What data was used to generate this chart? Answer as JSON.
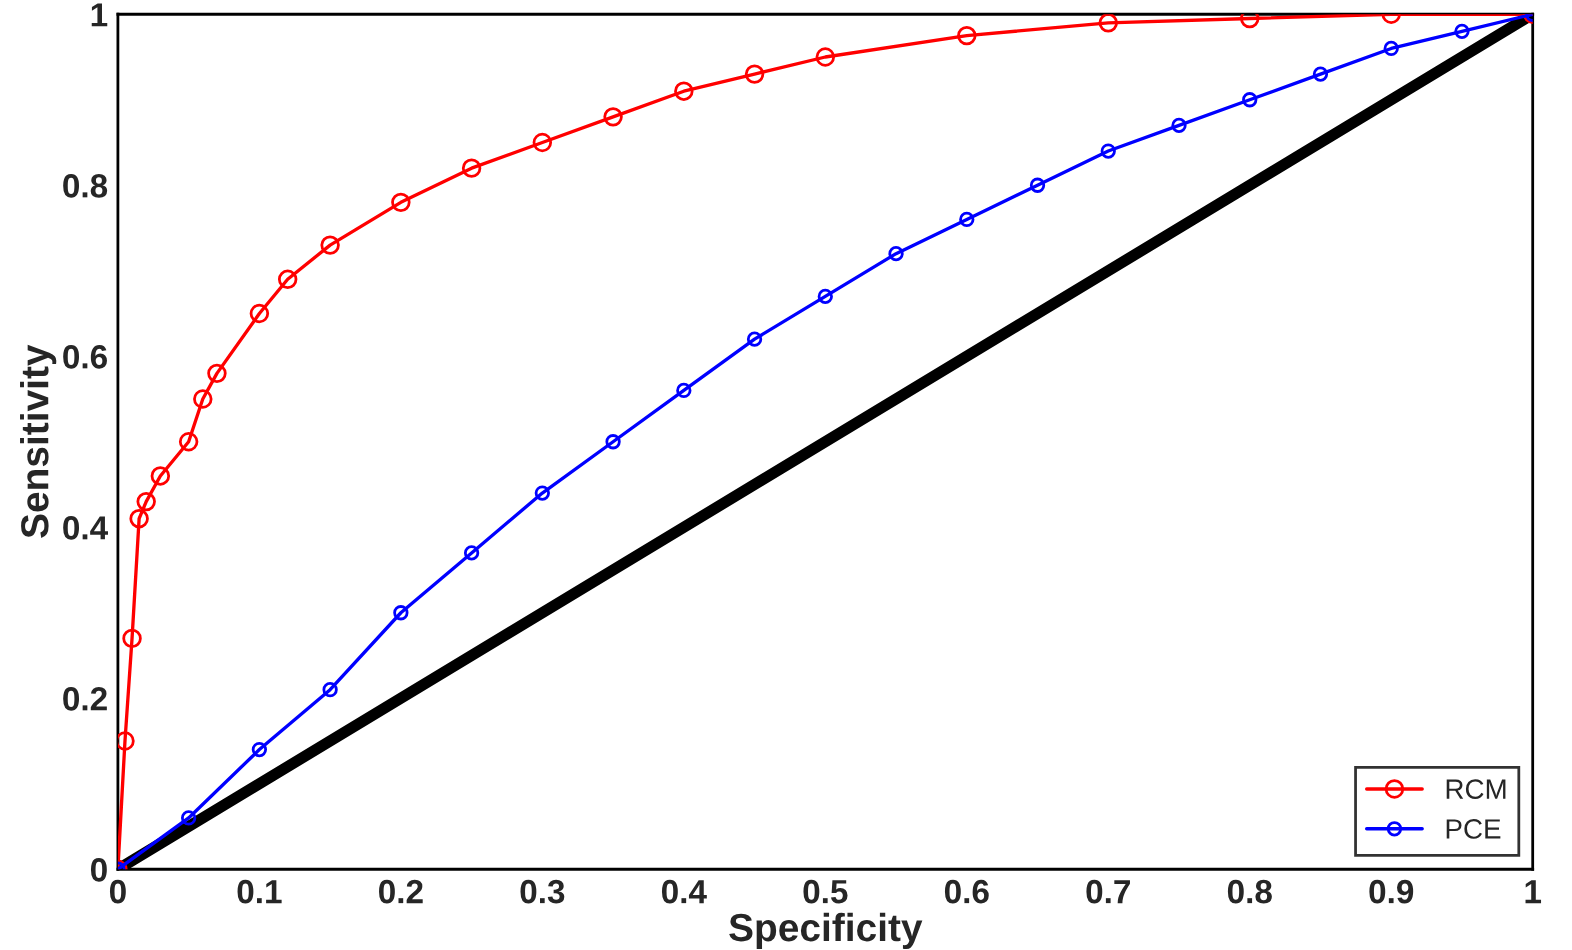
{
  "chart_data": {
    "type": "line",
    "xlabel": "Specificity",
    "ylabel": "Sensitivity",
    "xlim": [
      0,
      1
    ],
    "ylim": [
      0,
      1
    ],
    "xticks": [
      0,
      0.1,
      0.2,
      0.3,
      0.4,
      0.5,
      0.6,
      0.7,
      0.8,
      0.9,
      1
    ],
    "yticks": [
      0,
      0.2,
      0.4,
      0.6,
      0.8,
      1
    ],
    "grid": false,
    "legend": "bottom right",
    "series": [
      {
        "name": "RCM",
        "color": "#ff0000",
        "marker": "circle",
        "x": [
          0,
          0.005,
          0.01,
          0.015,
          0.02,
          0.03,
          0.05,
          0.06,
          0.07,
          0.1,
          0.12,
          0.15,
          0.2,
          0.25,
          0.3,
          0.35,
          0.4,
          0.45,
          0.5,
          0.6,
          0.7,
          0.8,
          0.9,
          1
        ],
        "values": [
          0,
          0.15,
          0.27,
          0.41,
          0.43,
          0.46,
          0.5,
          0.55,
          0.58,
          0.65,
          0.69,
          0.73,
          0.78,
          0.82,
          0.85,
          0.88,
          0.91,
          0.93,
          0.95,
          0.975,
          0.99,
          0.995,
          1,
          1
        ]
      },
      {
        "name": "PCE",
        "color": "#0000ff",
        "marker": "circle",
        "x": [
          0,
          0.05,
          0.1,
          0.15,
          0.2,
          0.25,
          0.3,
          0.35,
          0.4,
          0.45,
          0.5,
          0.55,
          0.6,
          0.65,
          0.7,
          0.75,
          0.8,
          0.85,
          0.9,
          0.95,
          1
        ],
        "values": [
          0,
          0.06,
          0.14,
          0.21,
          0.3,
          0.37,
          0.44,
          0.5,
          0.56,
          0.62,
          0.67,
          0.72,
          0.76,
          0.8,
          0.84,
          0.87,
          0.9,
          0.93,
          0.96,
          0.98,
          1
        ]
      },
      {
        "color": "#000000",
        "marker": "none",
        "x": [
          0,
          1
        ],
        "values": [
          0,
          1
        ]
      }
    ]
  }
}
